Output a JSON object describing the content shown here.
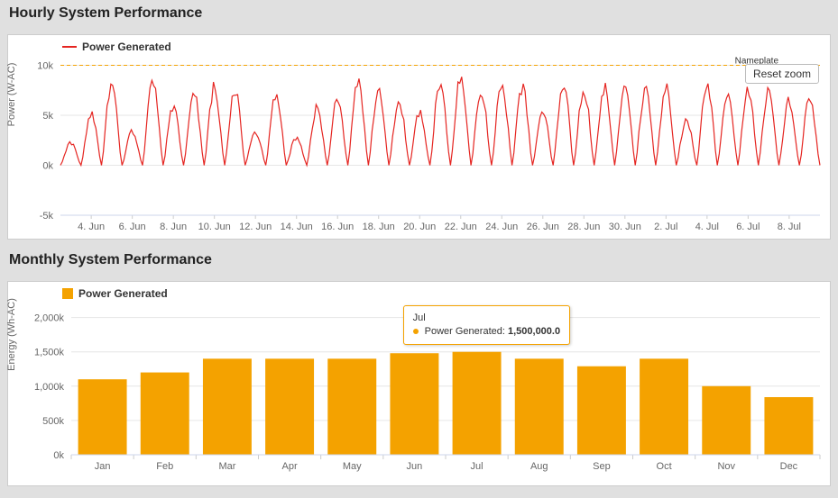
{
  "hourly": {
    "title": "Hourly System Performance",
    "legend_label": "Power Generated",
    "y_axis_label": "Power (W-AC)",
    "reset_zoom_label": "Reset zoom",
    "nameplate_label": "Nameplate",
    "nameplate_value": 10000,
    "type": "line",
    "line_color": "#e52521",
    "nameplate_color": "#f4a200",
    "grid_color": "#e6e6e6",
    "text_color": "#666666",
    "background_color": "#ffffff",
    "line_width": 1.2,
    "ylim": [
      -5000,
      10500
    ],
    "y_ticks": [
      {
        "v": -5000,
        "label": "-5k"
      },
      {
        "v": 0,
        "label": "0k"
      },
      {
        "v": 5000,
        "label": "5k"
      },
      {
        "v": 10000,
        "label": "10k"
      }
    ],
    "x_ticks": [
      "4. Jun",
      "6. Jun",
      "8. Jun",
      "10. Jun",
      "12. Jun",
      "14. Jun",
      "16. Jun",
      "18. Jun",
      "20. Jun",
      "22. Jun",
      "24. Jun",
      "26. Jun",
      "28. Jun",
      "30. Jun",
      "2. Jul",
      "4. Jul",
      "6. Jul",
      "8. Jul"
    ],
    "days": 37,
    "daily_peaks": [
      2200,
      5200,
      8200,
      3400,
      8800,
      5800,
      7200,
      7800,
      7600,
      3400,
      7200,
      2800,
      5800,
      6600,
      8200,
      7600,
      6400,
      5200,
      8400,
      8800,
      7400,
      8200,
      7800,
      5400,
      8200,
      7600,
      7800,
      8200,
      7400,
      7800,
      4600,
      8200,
      7200,
      7400,
      7600,
      6400,
      6600
    ],
    "label_fontsize": 11,
    "tick_fontsize": 11
  },
  "monthly": {
    "title": "Monthly System Performance",
    "legend_label": "Power Generated",
    "y_axis_label": "Energy (Wh-AC)",
    "type": "bar",
    "bar_color": "#f4a200",
    "grid_color": "#e6e6e6",
    "text_color": "#666666",
    "background_color": "#ffffff",
    "ylim": [
      0,
      2100000
    ],
    "y_ticks": [
      {
        "v": 0,
        "label": "0k"
      },
      {
        "v": 500000,
        "label": "500k"
      },
      {
        "v": 1000000,
        "label": "1,000k"
      },
      {
        "v": 1500000,
        "label": "1,500k"
      },
      {
        "v": 2000000,
        "label": "2,000k"
      }
    ],
    "categories": [
      "Jan",
      "Feb",
      "Mar",
      "Apr",
      "May",
      "Jun",
      "Jul",
      "Aug",
      "Sep",
      "Oct",
      "Nov",
      "Dec"
    ],
    "values": [
      1100000,
      1200000,
      1400000,
      1400000,
      1400000,
      1480000,
      1500000,
      1400000,
      1290000,
      1400000,
      1000000,
      840000
    ],
    "bar_width": 0.78,
    "tooltip": {
      "category": "Jul",
      "series_label": "Power Generated:",
      "value": "1,500,000.0",
      "index": 6
    },
    "label_fontsize": 11,
    "tick_fontsize": 11
  }
}
